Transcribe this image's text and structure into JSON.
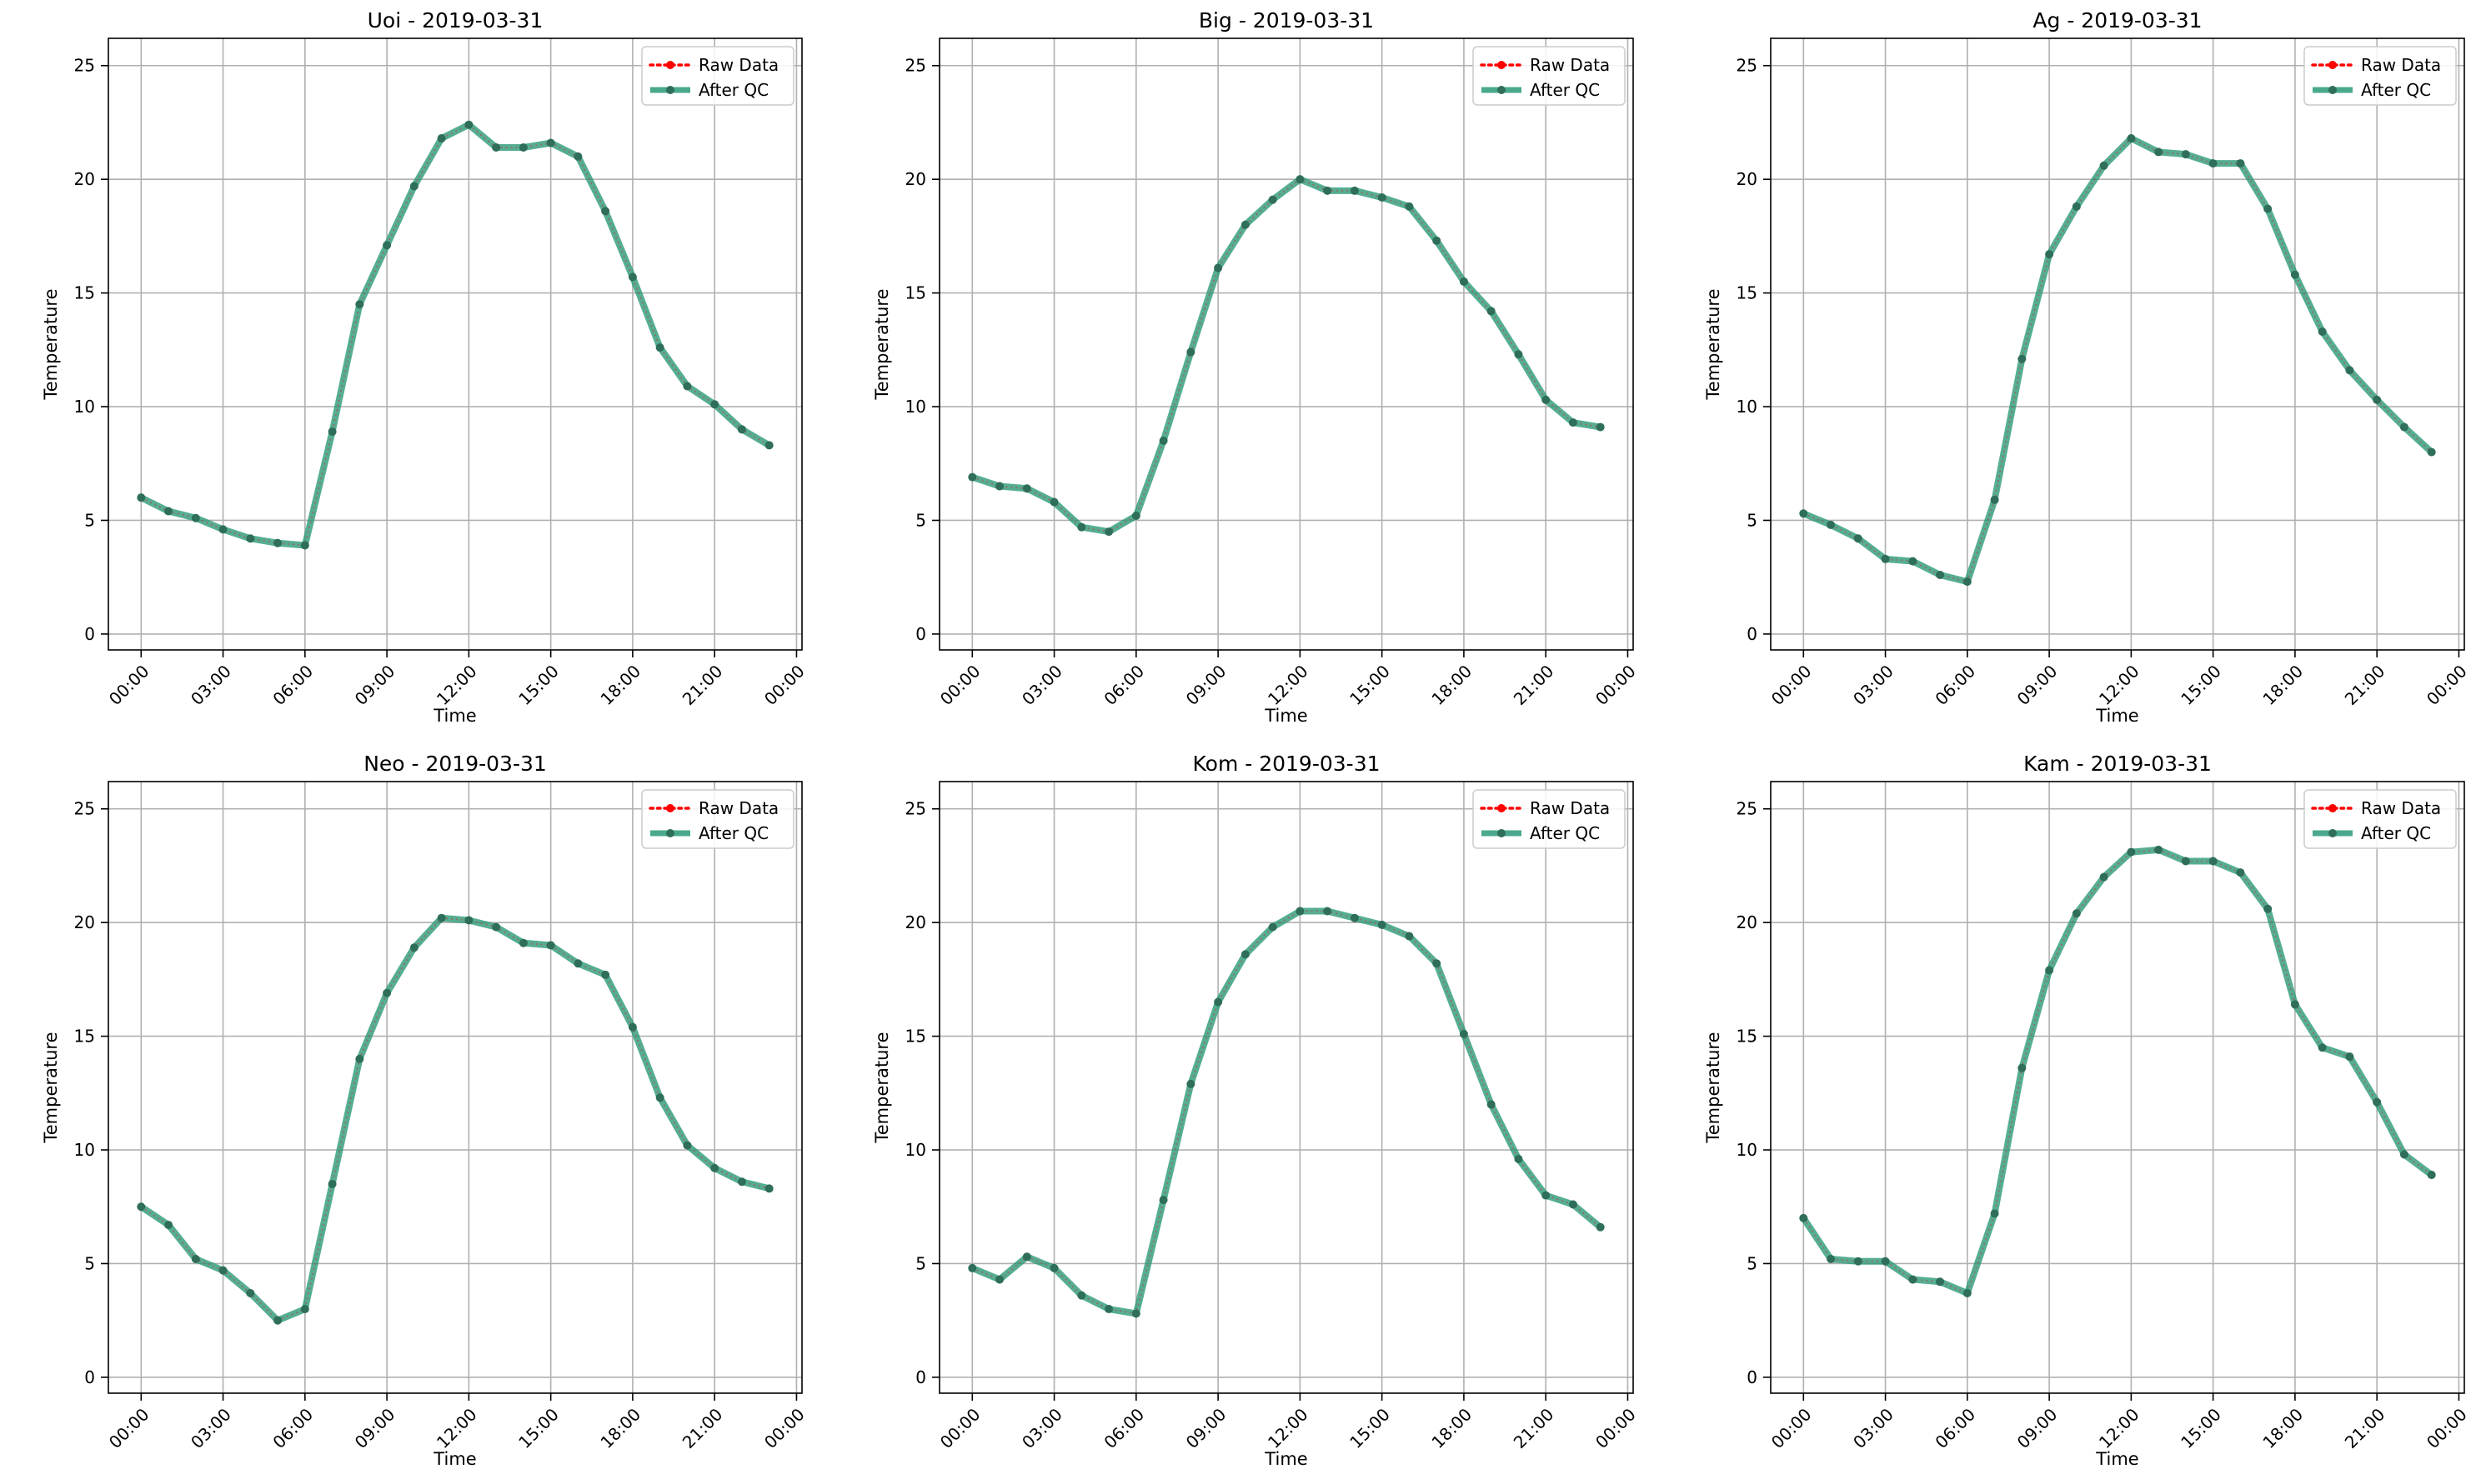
{
  "figure": {
    "background": "#ffffff"
  },
  "colors": {
    "raw": "#ff0000",
    "qc": "#2a9a78",
    "qc_marker": "#2f6e5a",
    "grid": "#b0b0b0",
    "axis": "#000000"
  },
  "legend": {
    "raw_label": "Raw Data",
    "qc_label": "After QC",
    "placement": "upper right"
  },
  "xlabel": "Time",
  "ylabel": "Temperature",
  "xtick_labels": [
    "00:00",
    "03:00",
    "06:00",
    "09:00",
    "12:00",
    "15:00",
    "18:00",
    "21:00",
    "00:00"
  ],
  "ytick_labels": [
    "0",
    "5",
    "10",
    "15",
    "20",
    "25"
  ],
  "chart_data": [
    {
      "type": "line",
      "title": "Uoi - 2019-03-31",
      "x_unit": "hour of day",
      "xlim": [
        -1.2,
        24.2
      ],
      "ylim": [
        -0.7,
        26.2
      ],
      "grid": true,
      "x": [
        0,
        1,
        2,
        3,
        4,
        5,
        6,
        7,
        8,
        9,
        10,
        11,
        12,
        13,
        14,
        15,
        16,
        17,
        18,
        19,
        20,
        21,
        22,
        23
      ],
      "series": [
        {
          "name": "Raw Data",
          "values": [
            6.0,
            5.4,
            5.1,
            4.6,
            4.2,
            4.0,
            3.9,
            8.9,
            14.5,
            17.1,
            19.7,
            21.8,
            22.4,
            21.4,
            21.4,
            21.6,
            21.0,
            18.6,
            15.7,
            12.6,
            10.9,
            10.1,
            9.0,
            8.3
          ]
        },
        {
          "name": "After QC",
          "values": [
            6.0,
            5.4,
            5.1,
            4.6,
            4.2,
            4.0,
            3.9,
            8.9,
            14.5,
            17.1,
            19.7,
            21.8,
            22.4,
            21.4,
            21.4,
            21.6,
            21.0,
            18.6,
            15.7,
            12.6,
            10.9,
            10.1,
            9.0,
            8.3
          ]
        }
      ]
    },
    {
      "type": "line",
      "title": "Big - 2019-03-31",
      "x_unit": "hour of day",
      "xlim": [
        -1.2,
        24.2
      ],
      "ylim": [
        -0.7,
        26.2
      ],
      "grid": true,
      "x": [
        0,
        1,
        2,
        3,
        4,
        5,
        6,
        7,
        8,
        9,
        10,
        11,
        12,
        13,
        14,
        15,
        16,
        17,
        18,
        19,
        20,
        21,
        22,
        23
      ],
      "series": [
        {
          "name": "Raw Data",
          "values": [
            6.9,
            6.5,
            6.4,
            5.8,
            4.7,
            4.5,
            5.2,
            8.5,
            12.4,
            16.1,
            18.0,
            19.1,
            20.0,
            19.5,
            19.5,
            19.2,
            18.8,
            17.3,
            15.5,
            14.2,
            12.3,
            10.3,
            9.3,
            9.1
          ]
        },
        {
          "name": "After QC",
          "values": [
            6.9,
            6.5,
            6.4,
            5.8,
            4.7,
            4.5,
            5.2,
            8.5,
            12.4,
            16.1,
            18.0,
            19.1,
            20.0,
            19.5,
            19.5,
            19.2,
            18.8,
            17.3,
            15.5,
            14.2,
            12.3,
            10.3,
            9.3,
            9.1
          ]
        }
      ]
    },
    {
      "type": "line",
      "title": "Ag - 2019-03-31",
      "x_unit": "hour of day",
      "xlim": [
        -1.2,
        24.2
      ],
      "ylim": [
        -0.7,
        26.2
      ],
      "grid": true,
      "x": [
        0,
        1,
        2,
        3,
        4,
        5,
        6,
        7,
        8,
        9,
        10,
        11,
        12,
        13,
        14,
        15,
        16,
        17,
        18,
        19,
        20,
        21,
        22,
        23
      ],
      "series": [
        {
          "name": "Raw Data",
          "values": [
            5.3,
            4.8,
            4.2,
            3.3,
            3.2,
            2.6,
            2.3,
            5.9,
            12.1,
            16.7,
            18.8,
            20.6,
            21.8,
            21.2,
            21.1,
            20.7,
            20.7,
            18.7,
            15.8,
            13.3,
            11.6,
            10.3,
            9.1,
            8.0
          ]
        },
        {
          "name": "After QC",
          "values": [
            5.3,
            4.8,
            4.2,
            3.3,
            3.2,
            2.6,
            2.3,
            5.9,
            12.1,
            16.7,
            18.8,
            20.6,
            21.8,
            21.2,
            21.1,
            20.7,
            20.7,
            18.7,
            15.8,
            13.3,
            11.6,
            10.3,
            9.1,
            8.0
          ]
        }
      ]
    },
    {
      "type": "line",
      "title": "Neo - 2019-03-31",
      "x_unit": "hour of day",
      "xlim": [
        -1.2,
        24.2
      ],
      "ylim": [
        -0.7,
        26.2
      ],
      "grid": true,
      "x": [
        0,
        1,
        2,
        3,
        4,
        5,
        6,
        7,
        8,
        9,
        10,
        11,
        12,
        13,
        14,
        15,
        16,
        17,
        18,
        19,
        20,
        21,
        22,
        23
      ],
      "series": [
        {
          "name": "Raw Data",
          "values": [
            7.5,
            6.7,
            5.2,
            4.7,
            3.7,
            2.5,
            3.0,
            8.5,
            14.0,
            16.9,
            18.9,
            20.2,
            20.1,
            19.8,
            19.1,
            19.0,
            18.2,
            17.7,
            15.4,
            12.3,
            10.2,
            9.2,
            8.6,
            8.3
          ]
        },
        {
          "name": "After QC",
          "values": [
            7.5,
            6.7,
            5.2,
            4.7,
            3.7,
            2.5,
            3.0,
            8.5,
            14.0,
            16.9,
            18.9,
            20.2,
            20.1,
            19.8,
            19.1,
            19.0,
            18.2,
            17.7,
            15.4,
            12.3,
            10.2,
            9.2,
            8.6,
            8.3
          ]
        }
      ]
    },
    {
      "type": "line",
      "title": "Kom - 2019-03-31",
      "x_unit": "hour of day",
      "xlim": [
        -1.2,
        24.2
      ],
      "ylim": [
        -0.7,
        26.2
      ],
      "grid": true,
      "x": [
        0,
        1,
        2,
        3,
        4,
        5,
        6,
        7,
        8,
        9,
        10,
        11,
        12,
        13,
        14,
        15,
        16,
        17,
        18,
        19,
        20,
        21,
        22,
        23
      ],
      "series": [
        {
          "name": "Raw Data",
          "values": [
            4.8,
            4.3,
            5.3,
            4.8,
            3.6,
            3.0,
            2.8,
            7.8,
            12.9,
            16.5,
            18.6,
            19.8,
            20.5,
            20.5,
            20.2,
            19.9,
            19.4,
            18.2,
            15.1,
            12.0,
            9.6,
            8.0,
            7.6,
            6.6
          ]
        },
        {
          "name": "After QC",
          "values": [
            4.8,
            4.3,
            5.3,
            4.8,
            3.6,
            3.0,
            2.8,
            7.8,
            12.9,
            16.5,
            18.6,
            19.8,
            20.5,
            20.5,
            20.2,
            19.9,
            19.4,
            18.2,
            15.1,
            12.0,
            9.6,
            8.0,
            7.6,
            6.6
          ]
        }
      ]
    },
    {
      "type": "line",
      "title": "Kam - 2019-03-31",
      "x_unit": "hour of day",
      "xlim": [
        -1.2,
        24.2
      ],
      "ylim": [
        -0.7,
        26.2
      ],
      "grid": true,
      "x": [
        0,
        1,
        2,
        3,
        4,
        5,
        6,
        7,
        8,
        9,
        10,
        11,
        12,
        13,
        14,
        15,
        16,
        17,
        18,
        19,
        20,
        21,
        22,
        23
      ],
      "series": [
        {
          "name": "Raw Data",
          "values": [
            7.0,
            5.2,
            5.1,
            5.1,
            4.3,
            4.2,
            3.7,
            7.2,
            13.6,
            17.9,
            20.4,
            22.0,
            23.1,
            23.2,
            22.7,
            22.7,
            22.2,
            20.6,
            16.4,
            14.5,
            14.1,
            12.1,
            9.8,
            8.9
          ]
        },
        {
          "name": "After QC",
          "values": [
            7.0,
            5.2,
            5.1,
            5.1,
            4.3,
            4.2,
            3.7,
            7.2,
            13.6,
            17.9,
            20.4,
            22.0,
            23.1,
            23.2,
            22.7,
            22.7,
            22.2,
            20.6,
            16.4,
            14.5,
            14.1,
            12.1,
            9.8,
            8.9
          ]
        }
      ]
    }
  ]
}
